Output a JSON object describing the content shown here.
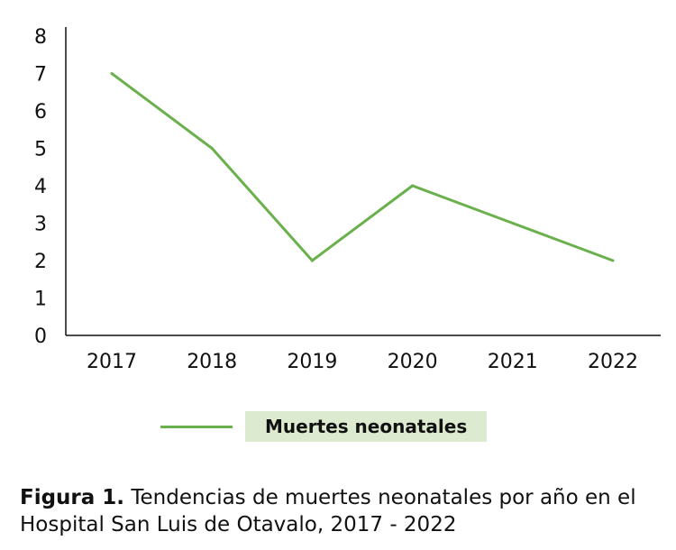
{
  "chart_data": {
    "type": "line",
    "categories": [
      "2017",
      "2018",
      "2019",
      "2020",
      "2021",
      "2022"
    ],
    "series": [
      {
        "name": "Muertes neonatales",
        "values": [
          7,
          5,
          2,
          4,
          3,
          2
        ],
        "color": "#6ab04c"
      }
    ],
    "y_ticks": [
      "0",
      "1",
      "2",
      "3",
      "4",
      "5",
      "6",
      "7",
      "8"
    ],
    "ylim": [
      0,
      8
    ],
    "grid": false,
    "legend_position": "bottom"
  },
  "caption": {
    "label": "Figura 1.",
    "text": " Tendencias de muertes neonatales por año en el Hospital San Luis de Otavalo, 2017 - 2022"
  }
}
